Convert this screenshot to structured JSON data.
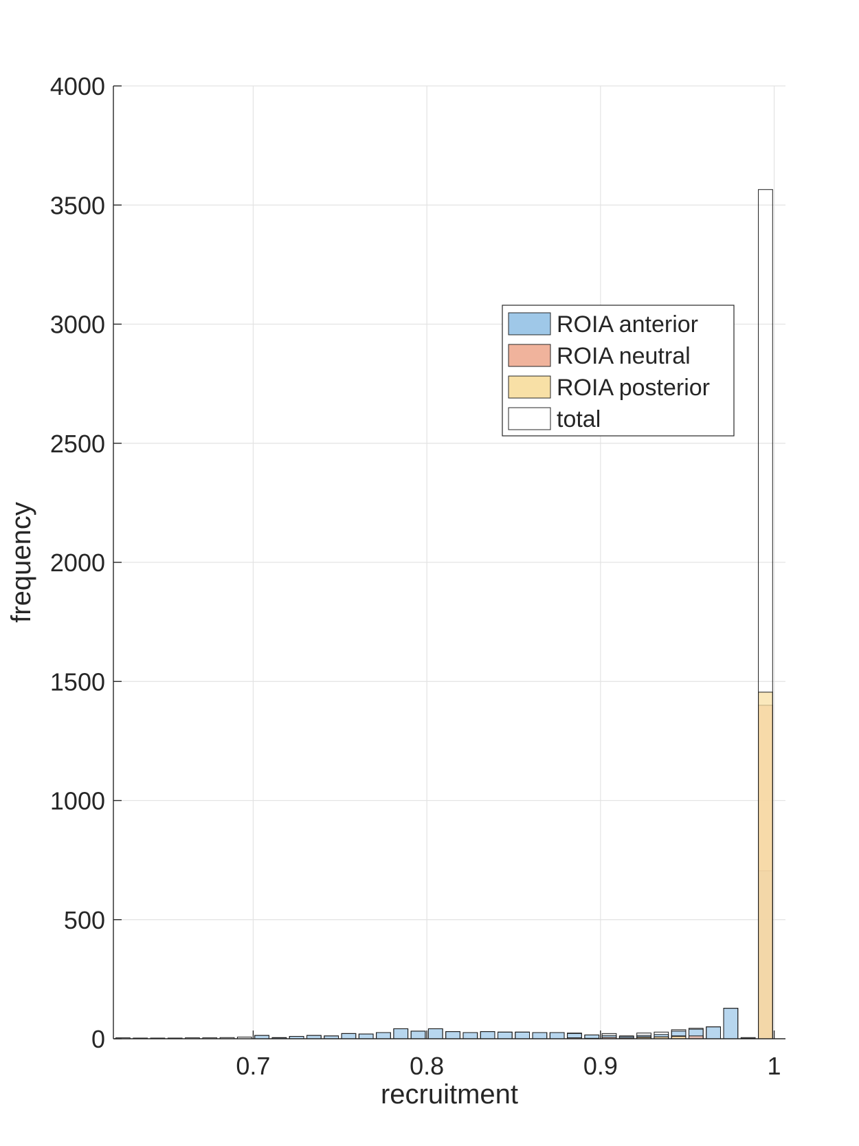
{
  "chart_data": {
    "type": "bar",
    "subtype": "overlaid-histogram",
    "title": "",
    "xlabel": "recruitment",
    "ylabel": "frequency",
    "xlim": [
      0.6195,
      1.0065
    ],
    "ylim": [
      0,
      4000
    ],
    "xticks": [
      0.7,
      0.8,
      0.9,
      1
    ],
    "xtick_labels": [
      "0.7",
      "0.8",
      "0.9",
      "1"
    ],
    "yticks": [
      0,
      500,
      1000,
      1500,
      2000,
      2500,
      3000,
      3500,
      4000
    ],
    "ytick_labels": [
      "0",
      "500",
      "1000",
      "1500",
      "2000",
      "2500",
      "3000",
      "3500",
      "4000"
    ],
    "grid": true,
    "legend_position": "upper-right, inside axes",
    "bin_width": 0.01,
    "bin_centers": [
      0.625,
      0.635,
      0.645,
      0.655,
      0.665,
      0.675,
      0.685,
      0.695,
      0.705,
      0.715,
      0.725,
      0.735,
      0.745,
      0.755,
      0.765,
      0.775,
      0.785,
      0.795,
      0.805,
      0.815,
      0.825,
      0.835,
      0.845,
      0.855,
      0.865,
      0.875,
      0.885,
      0.895,
      0.905,
      0.915,
      0.925,
      0.935,
      0.945,
      0.955,
      0.965,
      0.975,
      0.985,
      0.995
    ],
    "series": [
      {
        "name": "ROIA anterior",
        "color": "#9fc8e8",
        "values": [
          0,
          0,
          0,
          0,
          0,
          0,
          0,
          0,
          14,
          4,
          10,
          14,
          12,
          22,
          20,
          26,
          42,
          32,
          42,
          30,
          26,
          30,
          28,
          28,
          26,
          26,
          22,
          16,
          14,
          10,
          14,
          18,
          32,
          40,
          50,
          128,
          2,
          705
        ]
      },
      {
        "name": "ROIA neutral",
        "color": "#f0b39c",
        "values": [
          0,
          0,
          0,
          0,
          0,
          0,
          0,
          0,
          0,
          0,
          0,
          0,
          0,
          0,
          0,
          0,
          0,
          0,
          0,
          0,
          0,
          0,
          0,
          0,
          0,
          0,
          4,
          2,
          6,
          4,
          8,
          8,
          12,
          12,
          0,
          0,
          0,
          1400
        ]
      },
      {
        "name": "ROIA posterior",
        "color": "#f8e0a6",
        "values": [
          0,
          0,
          0,
          0,
          0,
          0,
          0,
          0,
          0,
          0,
          0,
          0,
          0,
          0,
          0,
          0,
          0,
          0,
          0,
          0,
          0,
          0,
          0,
          0,
          0,
          0,
          0,
          0,
          0,
          0,
          6,
          8,
          10,
          0,
          0,
          0,
          0,
          1455
        ]
      },
      {
        "name": "total",
        "color": "#ffffff",
        "values": [
          4,
          3,
          3,
          3,
          4,
          4,
          5,
          7,
          14,
          5,
          10,
          14,
          12,
          22,
          20,
          26,
          42,
          32,
          42,
          30,
          26,
          30,
          28,
          28,
          26,
          26,
          24,
          16,
          22,
          12,
          24,
          28,
          38,
          44,
          50,
          128,
          5,
          3565
        ]
      }
    ]
  }
}
